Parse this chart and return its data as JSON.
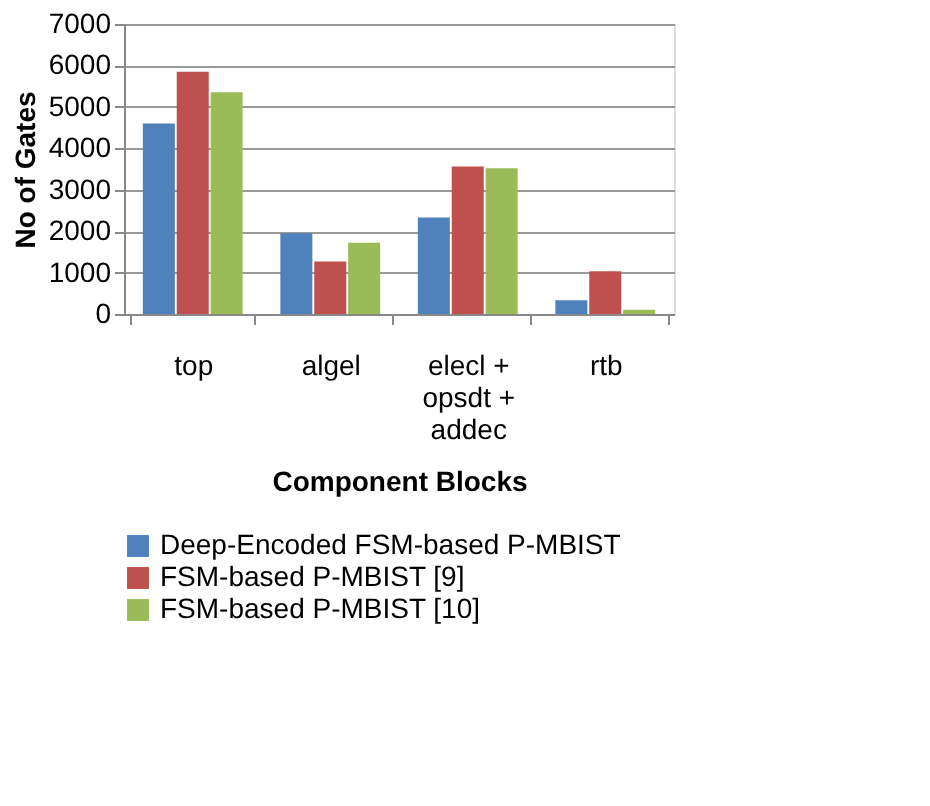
{
  "chart_data": {
    "type": "bar",
    "xlabel": "Component Blocks",
    "ylabel": "No of Gates",
    "categories": [
      "top",
      "algel",
      "elecl +\nopsdt +\naddec",
      "rtb"
    ],
    "series": [
      {
        "name": "Deep-Encoded FSM-based P-MBIST",
        "color": "#4f81bd",
        "values": [
          4600,
          1950,
          2330,
          330
        ]
      },
      {
        "name": "FSM-based P-MBIST [9]",
        "color": "#c0504d",
        "values": [
          5850,
          1270,
          3560,
          1030
        ]
      },
      {
        "name": "FSM-based P-MBIST [10]",
        "color": "#9bbb59",
        "values": [
          5350,
          1720,
          3520,
          100
        ]
      }
    ],
    "ylim": [
      0,
      7000
    ],
    "yticks": [
      0,
      1000,
      2000,
      3000,
      4000,
      5000,
      6000,
      7000
    ],
    "grid": "y",
    "legend": "bottom"
  }
}
